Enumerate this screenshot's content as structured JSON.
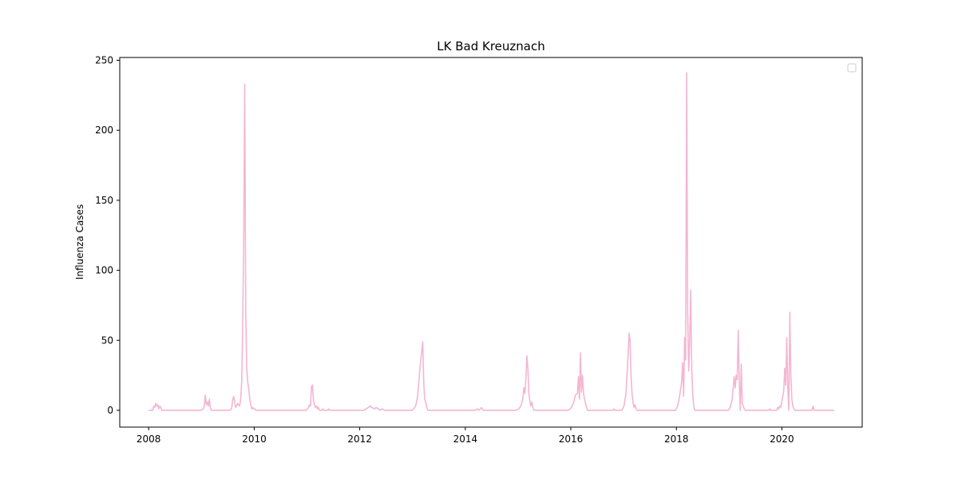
{
  "chart_data": {
    "type": "line",
    "title": "LK Bad Kreuznach",
    "xlabel": "",
    "ylabel": "Influenza Cases",
    "xlim": [
      "2007-06-15",
      "2021-07-10"
    ],
    "ylim": [
      -12,
      252
    ],
    "x_ticks": [
      "2008",
      "2010",
      "2012",
      "2014",
      "2016",
      "2018",
      "2020"
    ],
    "y_ticks": [
      "0",
      "50",
      "100",
      "150",
      "200",
      "250"
    ],
    "grid": false,
    "legend": {
      "placement": "top-right",
      "entries": []
    },
    "series": [
      {
        "color": "#f4b6d2",
        "points": [
          [
            "2008-01-01",
            0
          ],
          [
            "2008-01-29",
            0
          ],
          [
            "2008-02-05",
            3
          ],
          [
            "2008-02-12",
            2
          ],
          [
            "2008-02-19",
            5
          ],
          [
            "2008-02-26",
            3
          ],
          [
            "2008-03-04",
            4
          ],
          [
            "2008-03-11",
            1
          ],
          [
            "2008-03-18",
            3
          ],
          [
            "2008-03-25",
            2
          ],
          [
            "2008-04-01",
            0
          ],
          [
            "2008-12-30",
            0
          ],
          [
            "2009-01-13",
            1
          ],
          [
            "2009-01-20",
            3
          ],
          [
            "2009-01-27",
            11
          ],
          [
            "2009-02-03",
            4
          ],
          [
            "2009-02-10",
            6
          ],
          [
            "2009-02-17",
            3
          ],
          [
            "2009-02-24",
            8
          ],
          [
            "2009-03-03",
            2
          ],
          [
            "2009-03-10",
            0
          ],
          [
            "2009-07-14",
            0
          ],
          [
            "2009-07-28",
            1
          ],
          [
            "2009-08-04",
            7
          ],
          [
            "2009-08-11",
            10
          ],
          [
            "2009-08-18",
            7
          ],
          [
            "2009-08-25",
            2
          ],
          [
            "2009-09-01",
            3
          ],
          [
            "2009-09-08",
            5
          ],
          [
            "2009-09-15",
            4
          ],
          [
            "2009-09-22",
            3
          ],
          [
            "2009-09-29",
            8
          ],
          [
            "2009-10-06",
            20
          ],
          [
            "2009-10-13",
            60
          ],
          [
            "2009-10-20",
            120
          ],
          [
            "2009-10-27",
            233
          ],
          [
            "2009-11-03",
            70
          ],
          [
            "2009-11-10",
            30
          ],
          [
            "2009-11-17",
            20
          ],
          [
            "2009-11-24",
            15
          ],
          [
            "2009-12-01",
            8
          ],
          [
            "2009-12-08",
            4
          ],
          [
            "2009-12-15",
            1
          ],
          [
            "2009-12-22",
            2
          ],
          [
            "2009-12-29",
            1
          ],
          [
            "2010-01-05",
            1
          ],
          [
            "2010-01-12",
            0
          ],
          [
            "2010-12-28",
            0
          ],
          [
            "2011-01-11",
            2
          ],
          [
            "2011-01-18",
            4
          ],
          [
            "2011-01-25",
            3
          ],
          [
            "2011-02-01",
            17
          ],
          [
            "2011-02-08",
            18
          ],
          [
            "2011-02-15",
            7
          ],
          [
            "2011-02-22",
            4
          ],
          [
            "2011-03-01",
            2
          ],
          [
            "2011-03-08",
            3
          ],
          [
            "2011-03-15",
            1
          ],
          [
            "2011-03-22",
            2
          ],
          [
            "2011-03-29",
            0
          ],
          [
            "2011-04-12",
            0
          ],
          [
            "2011-04-19",
            1
          ],
          [
            "2011-04-26",
            0
          ],
          [
            "2011-05-24",
            0
          ],
          [
            "2011-05-31",
            1
          ],
          [
            "2011-06-07",
            0
          ],
          [
            "2012-01-31",
            0
          ],
          [
            "2012-02-14",
            1
          ],
          [
            "2012-02-28",
            2
          ],
          [
            "2012-03-13",
            3
          ],
          [
            "2012-03-27",
            2
          ],
          [
            "2012-04-10",
            1
          ],
          [
            "2012-04-24",
            2
          ],
          [
            "2012-05-08",
            1
          ],
          [
            "2012-05-22",
            0
          ],
          [
            "2012-06-05",
            1
          ],
          [
            "2012-06-19",
            0
          ],
          [
            "2012-12-25",
            0
          ],
          [
            "2013-01-08",
            1
          ],
          [
            "2013-01-22",
            3
          ],
          [
            "2013-02-05",
            10
          ],
          [
            "2013-02-19",
            28
          ],
          [
            "2013-03-05",
            42
          ],
          [
            "2013-03-12",
            49
          ],
          [
            "2013-03-19",
            20
          ],
          [
            "2013-03-26",
            8
          ],
          [
            "2013-04-02",
            6
          ],
          [
            "2013-04-09",
            2
          ],
          [
            "2013-04-16",
            0
          ],
          [
            "2014-03-11",
            0
          ],
          [
            "2014-03-25",
            1
          ],
          [
            "2014-04-08",
            0
          ],
          [
            "2014-04-22",
            2
          ],
          [
            "2014-05-06",
            0
          ],
          [
            "2014-12-16",
            0
          ],
          [
            "2015-01-06",
            1
          ],
          [
            "2015-01-20",
            3
          ],
          [
            "2015-02-03",
            8
          ],
          [
            "2015-02-10",
            16
          ],
          [
            "2015-02-17",
            12
          ],
          [
            "2015-02-24",
            22
          ],
          [
            "2015-03-03",
            39
          ],
          [
            "2015-03-10",
            30
          ],
          [
            "2015-03-17",
            12
          ],
          [
            "2015-03-24",
            6
          ],
          [
            "2015-03-31",
            3
          ],
          [
            "2015-04-07",
            6
          ],
          [
            "2015-04-14",
            2
          ],
          [
            "2015-04-21",
            0
          ],
          [
            "2015-12-15",
            0
          ],
          [
            "2016-01-05",
            2
          ],
          [
            "2016-01-19",
            5
          ],
          [
            "2016-02-02",
            11
          ],
          [
            "2016-02-16",
            12
          ],
          [
            "2016-02-23",
            24
          ],
          [
            "2016-03-01",
            8
          ],
          [
            "2016-03-08",
            41
          ],
          [
            "2016-03-15",
            13
          ],
          [
            "2016-03-22",
            25
          ],
          [
            "2016-03-29",
            12
          ],
          [
            "2016-04-05",
            8
          ],
          [
            "2016-04-12",
            5
          ],
          [
            "2016-04-19",
            2
          ],
          [
            "2016-04-26",
            0
          ],
          [
            "2016-10-18",
            0
          ],
          [
            "2016-10-25",
            1
          ],
          [
            "2016-11-01",
            0
          ],
          [
            "2016-12-20",
            0
          ],
          [
            "2017-01-03",
            3
          ],
          [
            "2017-01-17",
            12
          ],
          [
            "2017-01-24",
            25
          ],
          [
            "2017-01-31",
            38
          ],
          [
            "2017-02-07",
            55
          ],
          [
            "2017-02-14",
            50
          ],
          [
            "2017-02-21",
            25
          ],
          [
            "2017-02-28",
            12
          ],
          [
            "2017-03-07",
            5
          ],
          [
            "2017-03-14",
            2
          ],
          [
            "2017-03-21",
            4
          ],
          [
            "2017-03-28",
            1
          ],
          [
            "2017-04-04",
            0
          ],
          [
            "2017-12-26",
            0
          ],
          [
            "2018-01-09",
            3
          ],
          [
            "2018-01-23",
            10
          ],
          [
            "2018-02-06",
            20
          ],
          [
            "2018-02-13",
            34
          ],
          [
            "2018-02-20",
            10
          ],
          [
            "2018-02-27",
            52
          ],
          [
            "2018-03-06",
            36
          ],
          [
            "2018-03-13",
            241
          ],
          [
            "2018-03-20",
            70
          ],
          [
            "2018-03-27",
            28
          ],
          [
            "2018-04-03",
            50
          ],
          [
            "2018-04-10",
            86
          ],
          [
            "2018-04-17",
            30
          ],
          [
            "2018-04-24",
            12
          ],
          [
            "2018-05-01",
            3
          ],
          [
            "2018-05-08",
            0
          ],
          [
            "2018-12-25",
            0
          ],
          [
            "2019-01-08",
            2
          ],
          [
            "2019-01-22",
            8
          ],
          [
            "2019-02-05",
            24
          ],
          [
            "2019-02-12",
            16
          ],
          [
            "2019-02-19",
            25
          ],
          [
            "2019-02-26",
            22
          ],
          [
            "2019-03-05",
            57
          ],
          [
            "2019-03-12",
            20
          ],
          [
            "2019-03-19",
            0
          ],
          [
            "2019-03-26",
            33
          ],
          [
            "2019-04-02",
            5
          ],
          [
            "2019-04-09",
            3
          ],
          [
            "2019-04-16",
            1
          ],
          [
            "2019-04-23",
            0
          ],
          [
            "2019-10-01",
            0
          ],
          [
            "2019-10-08",
            1
          ],
          [
            "2019-10-15",
            0
          ],
          [
            "2019-11-26",
            0
          ],
          [
            "2019-12-03",
            2
          ],
          [
            "2019-12-10",
            1
          ],
          [
            "2019-12-17",
            3
          ],
          [
            "2019-12-24",
            2
          ],
          [
            "2019-12-31",
            6
          ],
          [
            "2020-01-14",
            14
          ],
          [
            "2020-01-21",
            30
          ],
          [
            "2020-01-28",
            18
          ],
          [
            "2020-02-04",
            52
          ],
          [
            "2020-02-11",
            16
          ],
          [
            "2020-02-18",
            0
          ],
          [
            "2020-02-25",
            70
          ],
          [
            "2020-03-03",
            25
          ],
          [
            "2020-03-10",
            8
          ],
          [
            "2020-03-17",
            3
          ],
          [
            "2020-03-24",
            1
          ],
          [
            "2020-03-31",
            0
          ],
          [
            "2020-07-28",
            0
          ],
          [
            "2020-08-04",
            3
          ],
          [
            "2020-08-11",
            0
          ],
          [
            "2020-12-29",
            0
          ]
        ]
      }
    ]
  }
}
